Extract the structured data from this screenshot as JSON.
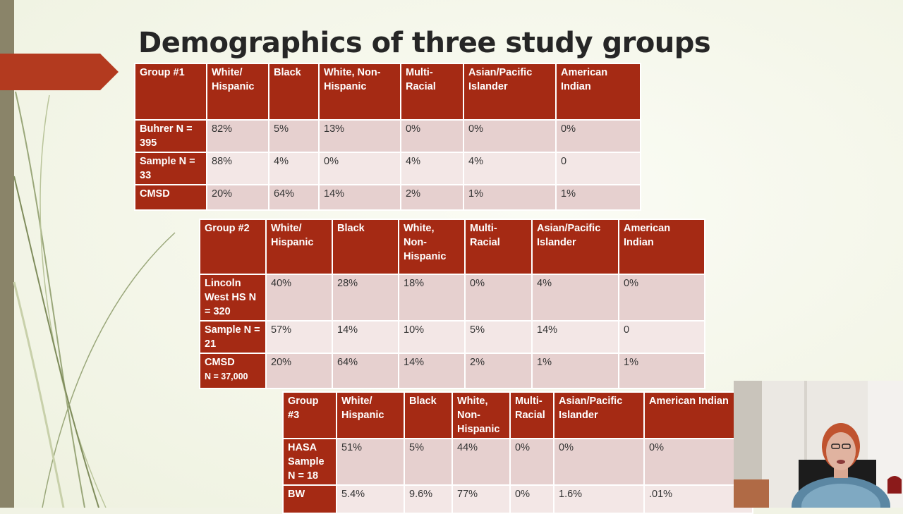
{
  "slide": {
    "title": "Demographics of three study groups",
    "accent_color": "#a52a14"
  },
  "tables": [
    {
      "header": [
        "Group #1",
        "White/ Hispanic",
        "Black",
        "White, Non-Hispanic",
        "Multi-Racial",
        "Asian/Pacific Islander",
        "American Indian"
      ],
      "rows": [
        [
          "Buhrer N = 395",
          "82%",
          "5%",
          "13%",
          "0%",
          "0%",
          "0%"
        ],
        [
          "Sample N = 33",
          "88%",
          "4%",
          "0%",
          "4%",
          "4%",
          "0"
        ],
        [
          "CMSD",
          "20%",
          "64%",
          "14%",
          "2%",
          "1%",
          "1%"
        ]
      ]
    },
    {
      "header": [
        "Group #2",
        "White/ Hispanic",
        "Black",
        "White, Non-Hispanic",
        "Multi-Racial",
        "Asian/Pacific Islander",
        "American Indian"
      ],
      "rows": [
        [
          "Lincoln West HS N = 320",
          "40%",
          "28%",
          "18%",
          "0%",
          "4%",
          "0%"
        ],
        [
          "Sample N = 21",
          "57%",
          "14%",
          "10%",
          "5%",
          "14%",
          "0"
        ],
        [
          "CMSD",
          "20%",
          "64%",
          "14%",
          "2%",
          "1%",
          "1%"
        ]
      ],
      "row3_sub": "N = 37,000"
    },
    {
      "header": [
        "Group #3",
        "White/ Hispanic",
        "Black",
        "White, Non-Hispanic",
        "Multi-Racial",
        "Asian/Pacific Islander",
        "American Indian"
      ],
      "rows": [
        [
          "HASA Sample N = 18",
          "51%",
          "5%",
          "44%",
          "0%",
          "0%",
          "0%"
        ],
        [
          "BW",
          "5.4%",
          "9.6%",
          "77%",
          "0%",
          "1.6%",
          ".01%"
        ]
      ]
    }
  ],
  "webcam": {
    "icon": "presenter-video"
  }
}
